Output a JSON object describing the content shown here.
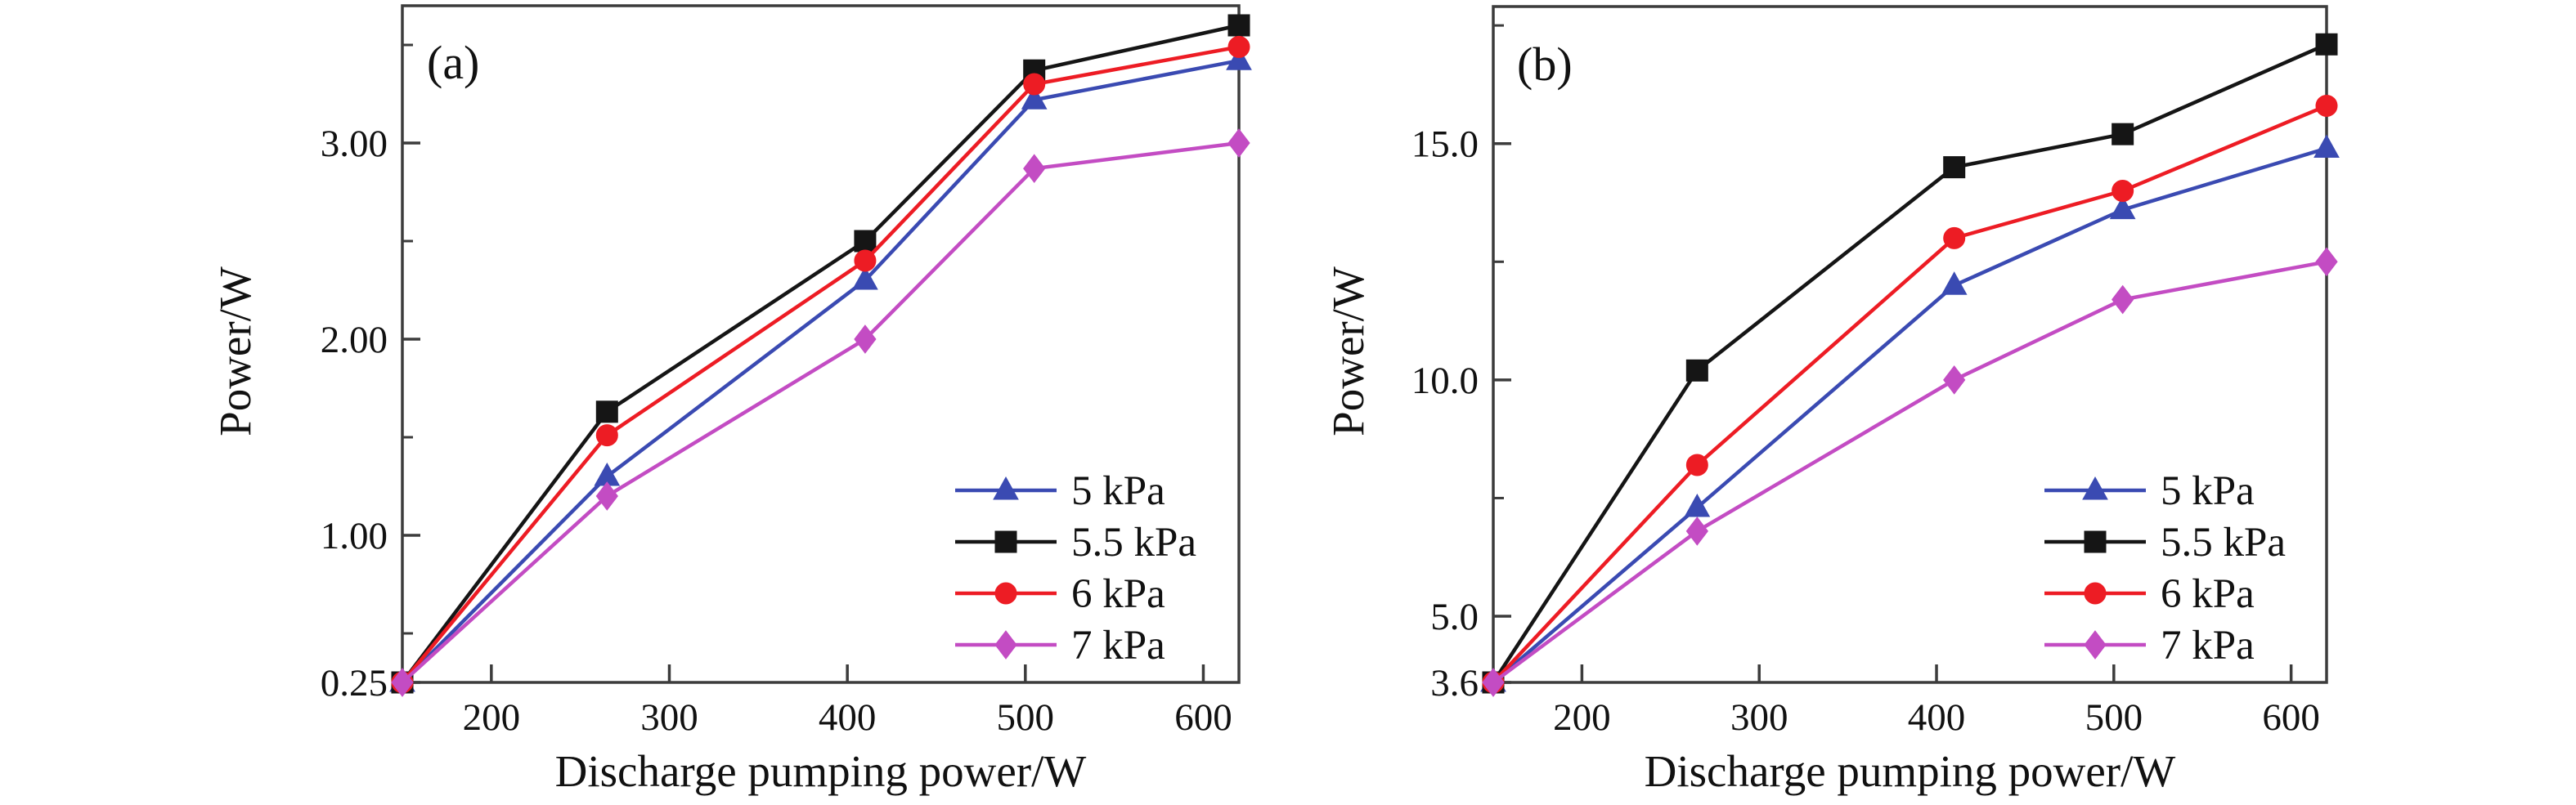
{
  "figure": {
    "description": "Two-panel line chart figure: laser output power versus discharge pumping power at four gas pressures",
    "background": "#ffffff",
    "frame_color": "#3c3c3c"
  },
  "chart_data": [
    {
      "type": "line",
      "panel_label": "(a)",
      "xlabel": "Discharge pumping power/W",
      "ylabel": "Power/W",
      "xlim": [
        150,
        620
      ],
      "ylim": [
        0.25,
        3.7
      ],
      "grid": false,
      "legend_position": "lower right",
      "x": [
        150,
        265,
        410,
        505,
        620
      ],
      "xticks": [
        {
          "value": 200,
          "label": "200"
        },
        {
          "value": 300,
          "label": "300"
        },
        {
          "value": 400,
          "label": "400"
        },
        {
          "value": 500,
          "label": "500"
        },
        {
          "value": 600,
          "label": "600"
        }
      ],
      "yticks": [
        {
          "value": 0.25,
          "label": "0.25"
        },
        {
          "value": 1.0,
          "label": "1.00"
        },
        {
          "value": 2.0,
          "label": "2.00"
        },
        {
          "value": 3.0,
          "label": "3.00"
        }
      ],
      "yticks_minor": [
        0.5,
        1.5,
        2.5,
        3.5
      ],
      "series": [
        {
          "name": "5 kPa",
          "marker": "triangle",
          "color": "#3a4ab2",
          "values": [
            0.25,
            1.3,
            2.3,
            3.22,
            3.42
          ]
        },
        {
          "name": "5.5 kPa",
          "marker": "square",
          "color": "#151515",
          "values": [
            0.25,
            1.63,
            2.5,
            3.37,
            3.6
          ]
        },
        {
          "name": "6 kPa",
          "marker": "circle",
          "color": "#ed1c24",
          "values": [
            0.25,
            1.51,
            2.4,
            3.3,
            3.49
          ]
        },
        {
          "name": "7 kPa",
          "marker": "diamond",
          "color": "#c34cc3",
          "values": [
            0.25,
            1.2,
            2.0,
            2.87,
            3.0
          ]
        }
      ]
    },
    {
      "type": "line",
      "panel_label": "(b)",
      "xlabel": "Discharge pumping power/W",
      "ylabel": "Power/W",
      "xlim": [
        150,
        620
      ],
      "ylim": [
        3.6,
        17.9
      ],
      "grid": false,
      "legend_position": "lower right",
      "x": [
        150,
        265,
        410,
        505,
        620
      ],
      "xticks": [
        {
          "value": 200,
          "label": "200"
        },
        {
          "value": 300,
          "label": "300"
        },
        {
          "value": 400,
          "label": "400"
        },
        {
          "value": 500,
          "label": "500"
        },
        {
          "value": 600,
          "label": "600"
        }
      ],
      "yticks": [
        {
          "value": 3.6,
          "label": "3.6"
        },
        {
          "value": 5.0,
          "label": "5.0"
        },
        {
          "value": 10.0,
          "label": "10.0"
        },
        {
          "value": 15.0,
          "label": "15.0"
        }
      ],
      "yticks_minor": [
        7.5,
        12.5,
        17.5
      ],
      "series": [
        {
          "name": "5 kPa",
          "marker": "triangle",
          "color": "#3a4ab2",
          "values": [
            3.6,
            7.3,
            12.0,
            13.6,
            14.9
          ]
        },
        {
          "name": "5.5 kPa",
          "marker": "square",
          "color": "#151515",
          "values": [
            3.6,
            10.2,
            14.5,
            15.2,
            17.1
          ]
        },
        {
          "name": "6 kPa",
          "marker": "circle",
          "color": "#ed1c24",
          "values": [
            3.6,
            8.2,
            13.0,
            14.0,
            15.8
          ]
        },
        {
          "name": "7 kPa",
          "marker": "diamond",
          "color": "#c34cc3",
          "values": [
            3.6,
            6.8,
            10.0,
            11.7,
            12.5
          ]
        }
      ]
    }
  ]
}
